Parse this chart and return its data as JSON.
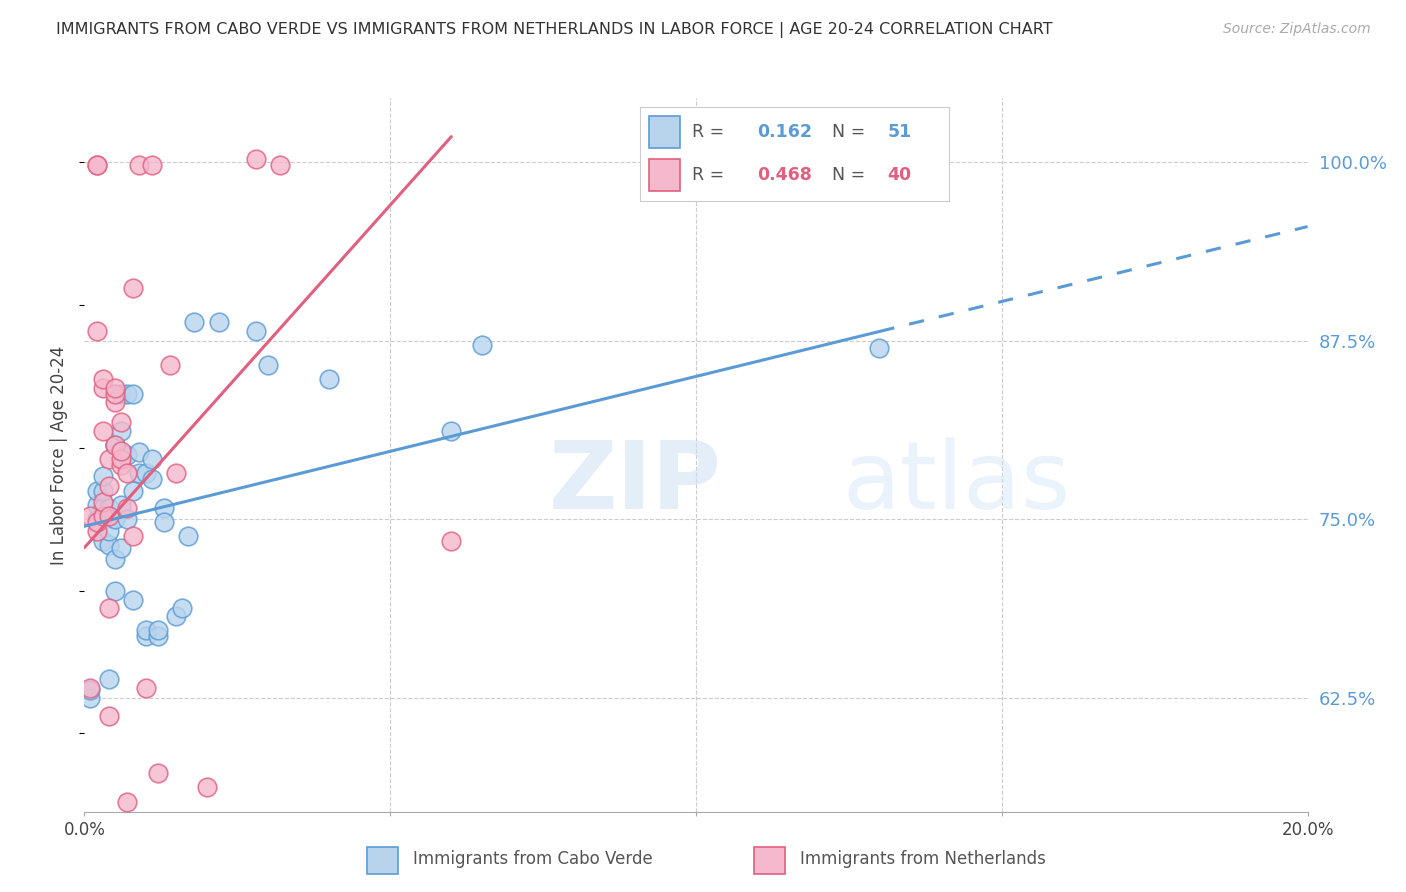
{
  "title": "IMMIGRANTS FROM CABO VERDE VS IMMIGRANTS FROM NETHERLANDS IN LABOR FORCE | AGE 20-24 CORRELATION CHART",
  "source": "Source: ZipAtlas.com",
  "ylabel": "In Labor Force | Age 20-24",
  "ytick_labels": [
    "62.5%",
    "75.0%",
    "87.5%",
    "100.0%"
  ],
  "ytick_values": [
    0.625,
    0.75,
    0.875,
    1.0
  ],
  "xlim": [
    0.0,
    0.2
  ],
  "ylim": [
    0.545,
    1.045
  ],
  "cabo_verde_R": 0.162,
  "cabo_verde_N": 51,
  "netherlands_R": 0.468,
  "netherlands_N": 40,
  "cabo_verde_color": "#b8d4ed",
  "netherlands_color": "#f5b8cc",
  "cabo_verde_line_color": "#5b9bd5",
  "netherlands_line_color": "#e06080",
  "watermark_zip": "ZIP",
  "watermark_atlas": "atlas",
  "cabo_verde_x": [
    0.001,
    0.001,
    0.002,
    0.002,
    0.002,
    0.003,
    0.003,
    0.003,
    0.003,
    0.003,
    0.004,
    0.004,
    0.004,
    0.004,
    0.005,
    0.005,
    0.005,
    0.005,
    0.005,
    0.006,
    0.006,
    0.006,
    0.006,
    0.007,
    0.007,
    0.007,
    0.008,
    0.008,
    0.008,
    0.009,
    0.009,
    0.01,
    0.01,
    0.01,
    0.011,
    0.011,
    0.012,
    0.012,
    0.013,
    0.013,
    0.015,
    0.016,
    0.017,
    0.018,
    0.022,
    0.028,
    0.03,
    0.04,
    0.06,
    0.065,
    0.13
  ],
  "cabo_verde_y": [
    0.625,
    0.63,
    0.75,
    0.76,
    0.77,
    0.735,
    0.75,
    0.758,
    0.77,
    0.78,
    0.638,
    0.732,
    0.742,
    0.758,
    0.7,
    0.75,
    0.802,
    0.722,
    0.802,
    0.73,
    0.812,
    0.76,
    0.838,
    0.75,
    0.795,
    0.838,
    0.77,
    0.838,
    0.693,
    0.797,
    0.782,
    0.668,
    0.672,
    0.782,
    0.778,
    0.792,
    0.668,
    0.672,
    0.758,
    0.748,
    0.682,
    0.688,
    0.738,
    0.888,
    0.888,
    0.882,
    0.858,
    0.848,
    0.812,
    0.872,
    0.87
  ],
  "netherlands_x": [
    0.001,
    0.001,
    0.002,
    0.002,
    0.002,
    0.002,
    0.002,
    0.003,
    0.003,
    0.003,
    0.003,
    0.003,
    0.004,
    0.004,
    0.004,
    0.004,
    0.004,
    0.005,
    0.005,
    0.005,
    0.005,
    0.006,
    0.006,
    0.006,
    0.006,
    0.007,
    0.007,
    0.007,
    0.008,
    0.008,
    0.009,
    0.01,
    0.011,
    0.012,
    0.014,
    0.015,
    0.02,
    0.028,
    0.032,
    0.06
  ],
  "netherlands_y": [
    0.752,
    0.632,
    0.998,
    0.998,
    0.742,
    0.748,
    0.882,
    0.752,
    0.842,
    0.848,
    0.762,
    0.812,
    0.612,
    0.688,
    0.752,
    0.792,
    0.773,
    0.832,
    0.838,
    0.842,
    0.802,
    0.818,
    0.788,
    0.792,
    0.798,
    0.758,
    0.782,
    0.552,
    0.912,
    0.738,
    0.998,
    0.632,
    0.998,
    0.572,
    0.858,
    0.782,
    0.562,
    1.002,
    0.998,
    0.735
  ],
  "cabo_verde_line_intercept": 0.745,
  "cabo_verde_line_slope": 1.05,
  "netherlands_line_intercept": 0.73,
  "netherlands_line_slope": 4.8
}
